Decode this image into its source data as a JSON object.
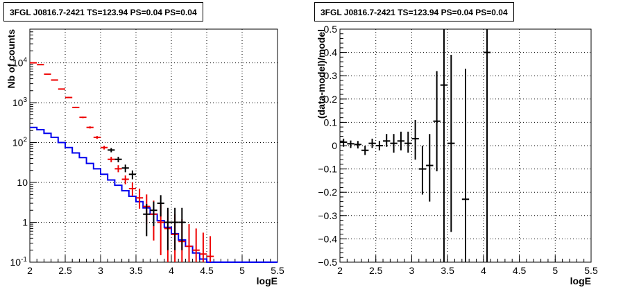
{
  "chart_data": [
    {
      "type": "line",
      "title": "3FGL J0816.7-2421 TS=123.94 PS=0.04 PS=0.04",
      "xlabel": "logE",
      "ylabel": "Nb of counts",
      "xlim": [
        2,
        5.5
      ],
      "ylim": [
        0.1,
        70000
      ],
      "yscale": "log",
      "grid": true,
      "x_ticks": [
        "2",
        "2.5",
        "3",
        "3.5",
        "4",
        "4.5",
        "5",
        "5.5"
      ],
      "y_ticks": [
        {
          "value": 0.1,
          "base": "10",
          "exp": "-1"
        },
        {
          "value": 1,
          "label": "1"
        },
        {
          "value": 10,
          "label": "10"
        },
        {
          "value": 100,
          "base": "10",
          "exp": "2"
        },
        {
          "value": 1000,
          "base": "10",
          "exp": "3"
        },
        {
          "value": 10000,
          "base": "10",
          "exp": "4"
        }
      ],
      "bin_edges": [
        2.0,
        2.1,
        2.2,
        2.3,
        2.4,
        2.5,
        2.6,
        2.7,
        2.8,
        2.9,
        3.0,
        3.1,
        3.2,
        3.3,
        3.4,
        3.5,
        3.6,
        3.7,
        3.8,
        3.9,
        4.0,
        4.1,
        4.2,
        4.3,
        4.4,
        4.5,
        4.6,
        4.7,
        4.8,
        4.9,
        5.0,
        5.1,
        5.2,
        5.3,
        5.4,
        5.5
      ],
      "series": [
        {
          "color": "#0000ee",
          "style": "histogram",
          "values": [
            240,
            210,
            170,
            135,
            100,
            75,
            55,
            42,
            30,
            22,
            16,
            11.5,
            8.5,
            6.2,
            4.5,
            3.3,
            2.3,
            1.6,
            1.1,
            0.75,
            0.52,
            0.36,
            0.25,
            0.17,
            0.12,
            0.1,
            0.1,
            0.1,
            0.1,
            0.1,
            0.1,
            0.1,
            0.1,
            0.1,
            0.1
          ]
        },
        {
          "color": "#ee0000",
          "style": "errorbar",
          "x": [
            2.05,
            2.15,
            2.25,
            2.35,
            2.45,
            2.55,
            2.65,
            2.75,
            2.85,
            2.95,
            3.05,
            3.15,
            3.25,
            3.35,
            3.45,
            3.55,
            3.65,
            3.75,
            3.85,
            3.95,
            4.05,
            4.15,
            4.25,
            4.35,
            4.45,
            4.55
          ],
          "y": [
            10000,
            9000,
            5200,
            3700,
            2200,
            1350,
            760,
            430,
            240,
            135,
            75,
            38,
            22,
            12,
            7,
            4.1,
            2.5,
            1.6,
            1.0,
            0.7,
            0.5,
            0.33,
            0.25,
            0.2,
            0.16,
            0.14
          ],
          "ylow": [
            9800,
            8800,
            5100,
            3600,
            2150,
            1300,
            730,
            410,
            225,
            124,
            67,
            32,
            18,
            9,
            4.5,
            2.2,
            0.9,
            0.35,
            0.15,
            0.1,
            0.1,
            0.1,
            0.1,
            0.1,
            0.1,
            0.1
          ],
          "yhigh": [
            10200,
            9200,
            5300,
            3800,
            2250,
            1400,
            790,
            450,
            255,
            146,
            83,
            44,
            27,
            15,
            10,
            7,
            5,
            3.5,
            2.8,
            2.0,
            1.6,
            1.2,
            0.9,
            0.7,
            0.55,
            0.45
          ]
        },
        {
          "color": "#000000",
          "style": "errorbar",
          "x": [
            3.15,
            3.25,
            3.35,
            3.45,
            3.65,
            3.75,
            3.85,
            3.95,
            4.05,
            4.15
          ],
          "y": [
            65,
            38,
            23,
            16,
            1.6,
            2.0,
            3.0,
            1.0,
            1.0,
            1.0
          ],
          "ylow": [
            57,
            32,
            18,
            12,
            0.45,
            0.8,
            1.4,
            0.2,
            0.2,
            0.2
          ],
          "yhigh": [
            73,
            44,
            28,
            20,
            2.9,
            3.3,
            4.8,
            2.3,
            2.3,
            2.3
          ]
        }
      ]
    },
    {
      "type": "scatter",
      "title": "3FGL J0816.7-2421 TS=123.94 PS=0.04 PS=0.04",
      "xlabel": "logE",
      "ylabel": "(data-model)/model",
      "xlim": [
        2,
        5.5
      ],
      "ylim": [
        -0.5,
        0.5
      ],
      "grid": true,
      "x_ticks": [
        "2",
        "2.5",
        "3",
        "3.5",
        "4",
        "4.5",
        "5",
        "5.5"
      ],
      "y_ticks": [
        "−0.5",
        "−0.4",
        "−0.3",
        "−0.2",
        "−0.1",
        "0",
        "0.1",
        "0.2",
        "0.3",
        "0.4",
        "0.5"
      ],
      "series": [
        {
          "color": "#000000",
          "x": [
            2.05,
            2.15,
            2.25,
            2.35,
            2.45,
            2.55,
            2.65,
            2.75,
            2.85,
            2.95,
            3.05,
            3.15,
            3.25,
            3.35,
            3.45,
            3.55,
            3.75,
            4.05
          ],
          "y": [
            0.015,
            0.008,
            0.005,
            -0.02,
            0.01,
            0.0,
            0.02,
            0.01,
            0.02,
            0.01,
            0.03,
            -0.1,
            -0.085,
            0.105,
            0.26,
            0.01,
            -0.23,
            0.4
          ],
          "ylow": [
            -0.005,
            -0.01,
            -0.012,
            -0.04,
            -0.01,
            -0.02,
            -0.005,
            -0.03,
            -0.02,
            -0.03,
            -0.06,
            -0.21,
            -0.24,
            -0.11,
            -0.5,
            -0.37,
            -0.5,
            -0.5
          ],
          "yhigh": [
            0.03,
            0.022,
            0.02,
            0.0,
            0.03,
            0.02,
            0.05,
            0.05,
            0.06,
            0.06,
            0.11,
            0.0,
            0.05,
            0.32,
            0.5,
            0.39,
            0.33,
            0.5
          ]
        }
      ]
    }
  ]
}
